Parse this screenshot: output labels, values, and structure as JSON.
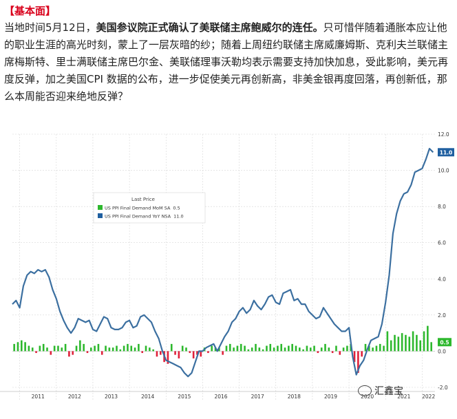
{
  "article": {
    "heading": "【基本面】",
    "para_lead": "当地时间5月12日，",
    "para_bold": "美国参议院正式确认了美联储主席鲍威尔的连任。",
    "para_rest": "只可惜伴随着通胀本应让他的职业生涯的高光时刻，蒙上了一层灰暗的纱；随着上周纽约联储主席威廉姆斯、克利夫兰联储主席梅斯特、里士满联储主席巴尔金、美联储理事沃勒均表示需要支持加快加息，受此影响，美元再度反弹，加之美国CPI 数据的公布，进一步促使美元再创新高，非美金银再度回落，再创新低，那么本周能否迎来绝地反弹？"
  },
  "watermark": "汇鑫宝",
  "colors": {
    "line": "#3b6fa0",
    "bar_pos": "#2db82d",
    "bar_neg": "#e0203a",
    "label_blue": "#1f5fa0",
    "label_green": "#2db82d"
  },
  "chart_data": {
    "type": "line+bar",
    "legend": {
      "title": "Last Price",
      "placement": "upper-left-center",
      "entries": [
        {
          "name": "US PPI Final Demand MoM SA",
          "value": "0.5",
          "color": "#2db82d"
        },
        {
          "name": "US PPI Final Demand YoY NSA",
          "value": "11.0",
          "color": "#1f5fa0"
        }
      ]
    },
    "ylim": [
      -2.0,
      12.0
    ],
    "y_ticks": [
      "12.0",
      "10.0",
      "8.0",
      "6.0",
      "4.0",
      "2.0",
      "0.0",
      "-2.0"
    ],
    "y_tick_values": [
      12,
      10,
      8,
      6,
      4,
      2,
      0,
      -2
    ],
    "x_ticks": [
      "2011",
      "2012",
      "2013",
      "2014",
      "2015",
      "2016",
      "2017",
      "2018",
      "2019",
      "2020",
      "2021",
      "2022"
    ],
    "xlim": [
      2010.8,
      2022.35
    ],
    "last_labels": {
      "yoy": "11.0",
      "mom": "0.5"
    },
    "series": [
      {
        "name": "US PPI Final Demand YoY NSA",
        "kind": "line",
        "x": [
          2010.8,
          2010.9,
          2011.0,
          2011.1,
          2011.2,
          2011.3,
          2011.4,
          2011.5,
          2011.6,
          2011.7,
          2011.8,
          2011.9,
          2012.0,
          2012.1,
          2012.2,
          2012.3,
          2012.4,
          2012.5,
          2012.6,
          2012.7,
          2012.8,
          2012.9,
          2013.0,
          2013.1,
          2013.2,
          2013.3,
          2013.4,
          2013.5,
          2013.6,
          2013.7,
          2013.8,
          2013.9,
          2014.0,
          2014.1,
          2014.2,
          2014.3,
          2014.4,
          2014.5,
          2014.6,
          2014.7,
          2014.8,
          2014.9,
          2015.0,
          2015.1,
          2015.2,
          2015.3,
          2015.4,
          2015.5,
          2015.6,
          2015.7,
          2015.8,
          2015.9,
          2016.0,
          2016.1,
          2016.2,
          2016.3,
          2016.4,
          2016.5,
          2016.6,
          2016.7,
          2016.8,
          2016.9,
          2017.0,
          2017.1,
          2017.2,
          2017.3,
          2017.4,
          2017.5,
          2017.6,
          2017.7,
          2017.8,
          2017.9,
          2018.0,
          2018.1,
          2018.2,
          2018.3,
          2018.4,
          2018.5,
          2018.6,
          2018.7,
          2018.8,
          2018.9,
          2019.0,
          2019.1,
          2019.2,
          2019.3,
          2019.4,
          2019.5,
          2019.6,
          2019.7,
          2019.8,
          2019.9,
          2020.0,
          2020.1,
          2020.2,
          2020.3,
          2020.4,
          2020.5,
          2020.6,
          2020.7,
          2020.8,
          2020.9,
          2021.0,
          2021.1,
          2021.2,
          2021.3,
          2021.4,
          2021.5,
          2021.6,
          2021.7,
          2021.8,
          2021.9,
          2022.0,
          2022.1,
          2022.2,
          2022.3
        ],
        "values": [
          2.6,
          2.8,
          2.4,
          3.6,
          4.2,
          4.4,
          4.3,
          4.5,
          4.4,
          4.5,
          4.1,
          3.4,
          2.9,
          2.2,
          1.7,
          1.3,
          1.0,
          1.3,
          1.8,
          1.7,
          1.6,
          1.7,
          1.2,
          1.1,
          1.5,
          1.9,
          1.8,
          1.3,
          1.2,
          1.2,
          1.3,
          1.6,
          1.7,
          1.3,
          1.4,
          1.9,
          2.0,
          1.8,
          1.6,
          1.1,
          0.7,
          0.0,
          -0.5,
          -0.6,
          -0.7,
          -0.8,
          -0.9,
          -1.2,
          -1.4,
          -1.2,
          -0.6,
          0.0,
          0.0,
          0.2,
          0.3,
          0.4,
          0.0,
          0.4,
          0.8,
          1.1,
          1.6,
          1.8,
          2.2,
          2.4,
          2.1,
          2.3,
          2.8,
          2.5,
          2.3,
          2.6,
          3.0,
          3.1,
          2.7,
          2.6,
          3.2,
          3.3,
          3.4,
          2.8,
          2.9,
          2.6,
          2.6,
          2.2,
          2.0,
          1.8,
          1.9,
          2.4,
          2.1,
          1.8,
          1.5,
          1.3,
          1.1,
          1.1,
          1.3,
          -0.3,
          -1.3,
          -0.8,
          -0.5,
          0.1,
          0.6,
          0.7,
          0.8,
          1.5,
          2.7,
          4.2,
          6.5,
          7.6,
          8.3,
          8.7,
          8.8,
          9.2,
          9.9,
          10.0,
          10.1,
          10.6,
          11.2,
          11.0
        ]
      },
      {
        "name": "US PPI Final Demand MoM SA",
        "kind": "bar",
        "x": [
          2010.85,
          2010.95,
          2011.05,
          2011.15,
          2011.25,
          2011.35,
          2011.45,
          2011.55,
          2011.65,
          2011.75,
          2011.85,
          2011.95,
          2012.05,
          2012.15,
          2012.25,
          2012.35,
          2012.45,
          2012.55,
          2012.65,
          2012.75,
          2012.85,
          2012.95,
          2013.05,
          2013.15,
          2013.25,
          2013.35,
          2013.45,
          2013.55,
          2013.65,
          2013.75,
          2013.85,
          2013.95,
          2014.05,
          2014.15,
          2014.25,
          2014.35,
          2014.45,
          2014.55,
          2014.65,
          2014.75,
          2014.85,
          2014.95,
          2015.05,
          2015.15,
          2015.25,
          2015.35,
          2015.45,
          2015.55,
          2015.65,
          2015.75,
          2015.85,
          2015.95,
          2016.05,
          2016.15,
          2016.25,
          2016.35,
          2016.45,
          2016.55,
          2016.65,
          2016.75,
          2016.85,
          2016.95,
          2017.05,
          2017.15,
          2017.25,
          2017.35,
          2017.45,
          2017.55,
          2017.65,
          2017.75,
          2017.85,
          2017.95,
          2018.05,
          2018.15,
          2018.25,
          2018.35,
          2018.45,
          2018.55,
          2018.65,
          2018.75,
          2018.85,
          2018.95,
          2019.05,
          2019.15,
          2019.25,
          2019.35,
          2019.45,
          2019.55,
          2019.65,
          2019.75,
          2019.85,
          2019.95,
          2020.05,
          2020.15,
          2020.25,
          2020.35,
          2020.45,
          2020.55,
          2020.65,
          2020.75,
          2020.85,
          2020.95,
          2021.05,
          2021.15,
          2021.25,
          2021.35,
          2021.45,
          2021.55,
          2021.65,
          2021.75,
          2021.85,
          2021.95,
          2022.05,
          2022.15,
          2022.25
        ],
        "values": [
          0.4,
          0.5,
          0.6,
          0.5,
          0.3,
          0.2,
          -0.1,
          0.3,
          0.4,
          0.2,
          -0.2,
          0.3,
          0.3,
          0.2,
          0.4,
          -0.3,
          -0.2,
          0.3,
          0.6,
          0.4,
          -0.1,
          0.2,
          0.3,
          0.4,
          -0.2,
          0.3,
          0.2,
          0.2,
          0.3,
          0.1,
          0.3,
          0.4,
          0.3,
          0.2,
          0.4,
          -0.1,
          0.3,
          0.2,
          0.1,
          -0.3,
          -0.2,
          -0.6,
          -0.7,
          0.4,
          -0.2,
          -0.4,
          0.3,
          0.2,
          -0.1,
          -0.4,
          -0.2,
          -0.3,
          0.2,
          -0.1,
          0.3,
          0.2,
          0.2,
          -0.2,
          0.3,
          0.4,
          0.2,
          0.3,
          0.4,
          0.3,
          0.1,
          0.2,
          0.4,
          0.2,
          0.1,
          0.3,
          0.4,
          0.2,
          0.3,
          0.4,
          0.2,
          0.3,
          0.4,
          0.3,
          0.2,
          0.1,
          0.3,
          0.2,
          0.3,
          -0.1,
          0.2,
          0.4,
          0.2,
          -0.1,
          0.3,
          -0.2,
          0.2,
          0.3,
          0.4,
          -0.6,
          -1.2,
          -0.3,
          0.4,
          0.3,
          0.2,
          0.3,
          0.4,
          0.3,
          1.1,
          0.6,
          0.9,
          0.8,
          1.0,
          0.9,
          0.8,
          1.1,
          0.9,
          0.6,
          1.1,
          1.4,
          0.5
        ]
      }
    ]
  }
}
